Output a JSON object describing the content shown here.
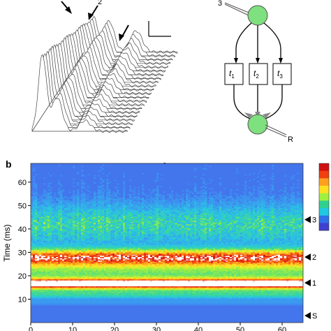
{
  "panel_a": {
    "waterfall": {
      "arrow_label_2": "2",
      "trace_count": 22
    },
    "schematic": {
      "top_node_label": "3",
      "boxes": [
        {
          "main": "t",
          "sub": "1"
        },
        {
          "main": "t",
          "sub": "2"
        },
        {
          "main": "t",
          "sub": "3"
        }
      ],
      "bottom_node_label": "R",
      "node_color": "#7ee07e"
    }
  },
  "panel_b": {
    "panel_label": "b",
    "top_label": "3",
    "chart_data": {
      "type": "heatmap",
      "xlabel": "",
      "ylabel": "Time (ms)",
      "x_ticks": [
        0,
        10,
        20,
        30,
        40,
        50,
        60
      ],
      "xlim": [
        0,
        65
      ],
      "y_ticks": [
        10,
        20,
        30,
        40,
        50,
        60
      ],
      "ylim": [
        0,
        68
      ],
      "bands": [
        {
          "label": "3",
          "y": 44
        },
        {
          "label": "2",
          "y": 28
        },
        {
          "label": "1",
          "y": 17
        },
        {
          "label": "S",
          "y": 3
        }
      ],
      "colorbar_colors": [
        "#d01010",
        "#f04010",
        "#ffa020",
        "#ffe020",
        "#a0f040",
        "#30d090",
        "#20c8e0",
        "#3070e8",
        "#4040d0"
      ]
    }
  }
}
